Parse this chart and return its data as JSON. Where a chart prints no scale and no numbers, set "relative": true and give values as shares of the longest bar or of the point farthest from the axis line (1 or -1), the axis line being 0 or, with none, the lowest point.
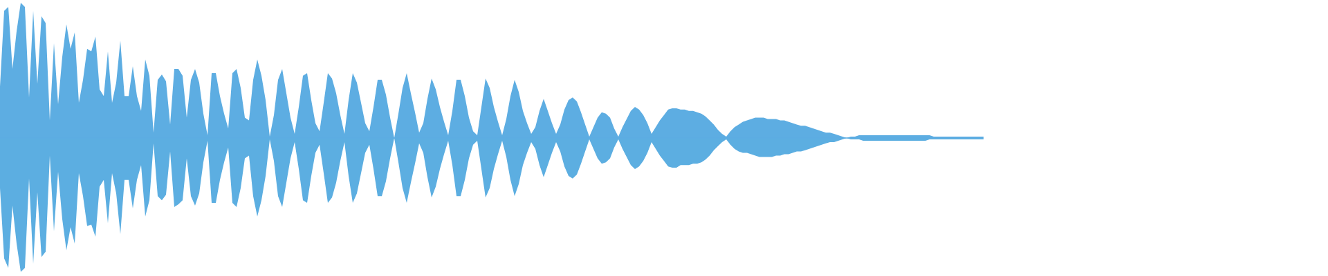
{
  "chart_data": {
    "type": "area",
    "relative": true,
    "categories": [
      null,
      null,
      null,
      null,
      null,
      null,
      null,
      null,
      null,
      null,
      null,
      null,
      null,
      null,
      null,
      null,
      null,
      null,
      null,
      null,
      null,
      null,
      null,
      null,
      null,
      null,
      null,
      null,
      null,
      null,
      null,
      null,
      null,
      null,
      null,
      null,
      null,
      null,
      null,
      null,
      null,
      null,
      null,
      null,
      null,
      null,
      null,
      null,
      null,
      null,
      null,
      null,
      null,
      null,
      null,
      null,
      null,
      null,
      null,
      null,
      null,
      null,
      null,
      null,
      null,
      null,
      null,
      null,
      null,
      null,
      null,
      null,
      null,
      null,
      null,
      null,
      null,
      null,
      null,
      null,
      null,
      null,
      null,
      null,
      null,
      null,
      null,
      null,
      null,
      null,
      null,
      null,
      null,
      null,
      null,
      null,
      null,
      null,
      null,
      null,
      null,
      null,
      null,
      null,
      null,
      null,
      null,
      null,
      null,
      null,
      null,
      null,
      null,
      null,
      null,
      null,
      null,
      null,
      null,
      null,
      null,
      null,
      null,
      null,
      null,
      null,
      null,
      null,
      null,
      null,
      null,
      null,
      null,
      null,
      null,
      null,
      null,
      null,
      null,
      null,
      null,
      null,
      null,
      null,
      null,
      null,
      null,
      null,
      null,
      null,
      null,
      null,
      null,
      null,
      null,
      null,
      null,
      null,
      null,
      null,
      null,
      null,
      null,
      null,
      null,
      null,
      null,
      null,
      null,
      null,
      null,
      null,
      null,
      null,
      null,
      null,
      null,
      null,
      null,
      null,
      null,
      null,
      null,
      null,
      null,
      null,
      null,
      null,
      null,
      null,
      null,
      null,
      null,
      null,
      null,
      null,
      null,
      null,
      null,
      null,
      null,
      null,
      null,
      null,
      null,
      null,
      null,
      null,
      null,
      null,
      null,
      null,
      null,
      null,
      null,
      null,
      null,
      null,
      null,
      null,
      null,
      null,
      null,
      null,
      null,
      null,
      null,
      null,
      null,
      null,
      null,
      null,
      null,
      null,
      null,
      null,
      null,
      null
    ],
    "series": [
      {
        "color": "#5dade2",
        "values": [
          0.38,
          0.94,
          0.97,
          0.51,
          0.79,
          1.0,
          0.97,
          0.3,
          0.94,
          0.4,
          0.9,
          0.85,
          0.13,
          0.7,
          0.25,
          0.6,
          0.84,
          0.66,
          0.78,
          0.26,
          0.43,
          0.66,
          0.64,
          0.75,
          0.36,
          0.31,
          0.64,
          0.26,
          0.41,
          0.72,
          0.31,
          0.31,
          0.53,
          0.31,
          0.2,
          0.58,
          0.46,
          0.04,
          0.43,
          0.47,
          0.42,
          0.1,
          0.51,
          0.51,
          0.46,
          0.15,
          0.43,
          0.51,
          0.41,
          0.18,
          0.02,
          0.48,
          0.48,
          0.31,
          0.18,
          0.07,
          0.48,
          0.51,
          0.37,
          0.15,
          0.13,
          0.43,
          0.58,
          0.46,
          0.28,
          0.01,
          0.17,
          0.43,
          0.51,
          0.33,
          0.15,
          0.03,
          0.23,
          0.46,
          0.48,
          0.28,
          0.11,
          0.05,
          0.26,
          0.48,
          0.44,
          0.33,
          0.17,
          0.03,
          0.28,
          0.48,
          0.41,
          0.26,
          0.11,
          0.05,
          0.23,
          0.43,
          0.43,
          0.32,
          0.15,
          0.0,
          0.18,
          0.37,
          0.48,
          0.33,
          0.19,
          0.04,
          0.11,
          0.29,
          0.44,
          0.36,
          0.23,
          0.12,
          0.02,
          0.2,
          0.43,
          0.43,
          0.31,
          0.15,
          0.05,
          0.02,
          0.23,
          0.44,
          0.37,
          0.23,
          0.12,
          0.02,
          0.14,
          0.31,
          0.43,
          0.34,
          0.2,
          0.11,
          0.03,
          0.08,
          0.2,
          0.29,
          0.2,
          0.11,
          0.03,
          0.1,
          0.21,
          0.28,
          0.3,
          0.27,
          0.19,
          0.1,
          0.01,
          0.08,
          0.15,
          0.19,
          0.18,
          0.15,
          0.07,
          0.01,
          0.08,
          0.14,
          0.2,
          0.23,
          0.21,
          0.17,
          0.11,
          0.03,
          0.08,
          0.13,
          0.17,
          0.21,
          0.22,
          0.22,
          0.21,
          0.21,
          0.2,
          0.2,
          0.19,
          0.18,
          0.16,
          0.13,
          0.1,
          0.06,
          0.03,
          0.01,
          0.05,
          0.08,
          0.1,
          0.12,
          0.13,
          0.14,
          0.15,
          0.15,
          0.15,
          0.14,
          0.14,
          0.14,
          0.13,
          0.13,
          0.12,
          0.11,
          0.1,
          0.09,
          0.09,
          0.08,
          0.07,
          0.06,
          0.05,
          0.04,
          0.04,
          0.03,
          0.02,
          0.01,
          0.0,
          0.01,
          0.01,
          0.02,
          0.02,
          0.02,
          0.02,
          0.02,
          0.02,
          0.02,
          0.02,
          0.02,
          0.02,
          0.02,
          0.02,
          0.02,
          0.02,
          0.02,
          0.02,
          0.02,
          0.02,
          0.01,
          0.01,
          0.01,
          0.01,
          0.01,
          0.01,
          0.01,
          0.01,
          0.01,
          0.01,
          0.01,
          0.01,
          0.01
        ]
      },
      {
        "color": "#5caee1",
        "values": [
          -0.37,
          -0.89,
          -0.96,
          -0.5,
          -0.78,
          -0.99,
          -0.96,
          -0.3,
          -0.93,
          -0.4,
          -0.88,
          -0.84,
          -0.13,
          -0.69,
          -0.25,
          -0.6,
          -0.83,
          -0.66,
          -0.78,
          -0.26,
          -0.43,
          -0.65,
          -0.64,
          -0.73,
          -0.36,
          -0.31,
          -0.63,
          -0.26,
          -0.41,
          -0.71,
          -0.31,
          -0.31,
          -0.52,
          -0.31,
          -0.2,
          -0.58,
          -0.46,
          -0.04,
          -0.43,
          -0.46,
          -0.42,
          -0.1,
          -0.51,
          -0.49,
          -0.46,
          -0.15,
          -0.43,
          -0.5,
          -0.41,
          -0.18,
          -0.02,
          -0.48,
          -0.48,
          -0.31,
          -0.18,
          -0.07,
          -0.48,
          -0.51,
          -0.37,
          -0.15,
          -0.13,
          -0.43,
          -0.58,
          -0.46,
          -0.28,
          -0.01,
          -0.17,
          -0.43,
          -0.51,
          -0.33,
          -0.15,
          -0.03,
          -0.23,
          -0.46,
          -0.48,
          -0.28,
          -0.11,
          -0.05,
          -0.26,
          -0.48,
          -0.44,
          -0.33,
          -0.17,
          -0.03,
          -0.28,
          -0.48,
          -0.41,
          -0.26,
          -0.11,
          -0.05,
          -0.23,
          -0.43,
          -0.43,
          -0.32,
          -0.15,
          0.0,
          -0.18,
          -0.37,
          -0.48,
          -0.33,
          -0.19,
          -0.04,
          -0.11,
          -0.29,
          -0.44,
          -0.36,
          -0.23,
          -0.12,
          -0.02,
          -0.2,
          -0.43,
          -0.43,
          -0.31,
          -0.15,
          -0.05,
          -0.02,
          -0.23,
          -0.44,
          -0.37,
          -0.23,
          -0.12,
          -0.02,
          -0.14,
          -0.31,
          -0.43,
          -0.34,
          -0.2,
          -0.11,
          -0.03,
          -0.08,
          -0.2,
          -0.29,
          -0.2,
          -0.11,
          -0.03,
          -0.1,
          -0.21,
          -0.28,
          -0.3,
          -0.27,
          -0.19,
          -0.1,
          -0.01,
          -0.08,
          -0.15,
          -0.19,
          -0.18,
          -0.15,
          -0.07,
          -0.01,
          -0.08,
          -0.14,
          -0.2,
          -0.23,
          -0.21,
          -0.17,
          -0.11,
          -0.03,
          -0.08,
          -0.13,
          -0.17,
          -0.21,
          -0.22,
          -0.22,
          -0.2,
          -0.2,
          -0.2,
          -0.19,
          -0.19,
          -0.18,
          -0.16,
          -0.13,
          -0.09,
          -0.06,
          -0.03,
          -0.01,
          -0.05,
          -0.08,
          -0.1,
          -0.11,
          -0.11,
          -0.12,
          -0.13,
          -0.14,
          -0.14,
          -0.14,
          -0.14,
          -0.13,
          -0.13,
          -0.12,
          -0.12,
          -0.11,
          -0.1,
          -0.1,
          -0.09,
          -0.08,
          -0.07,
          -0.06,
          -0.05,
          -0.04,
          -0.03,
          -0.03,
          -0.02,
          -0.01,
          0.0,
          -0.01,
          -0.01,
          -0.01,
          -0.02,
          -0.02,
          -0.02,
          -0.02,
          -0.02,
          -0.02,
          -0.02,
          -0.02,
          -0.02,
          -0.02,
          -0.02,
          -0.02,
          -0.02,
          -0.02,
          -0.02,
          -0.02,
          -0.01,
          -0.01,
          -0.01,
          -0.01,
          -0.01,
          -0.01,
          -0.01,
          -0.01,
          -0.01,
          -0.01,
          -0.01,
          -0.01,
          -0.01,
          -0.01
        ]
      }
    ],
    "ref_lines": [
      {
        "axis": "y",
        "value": 0,
        "color": "#5dade2"
      }
    ]
  }
}
